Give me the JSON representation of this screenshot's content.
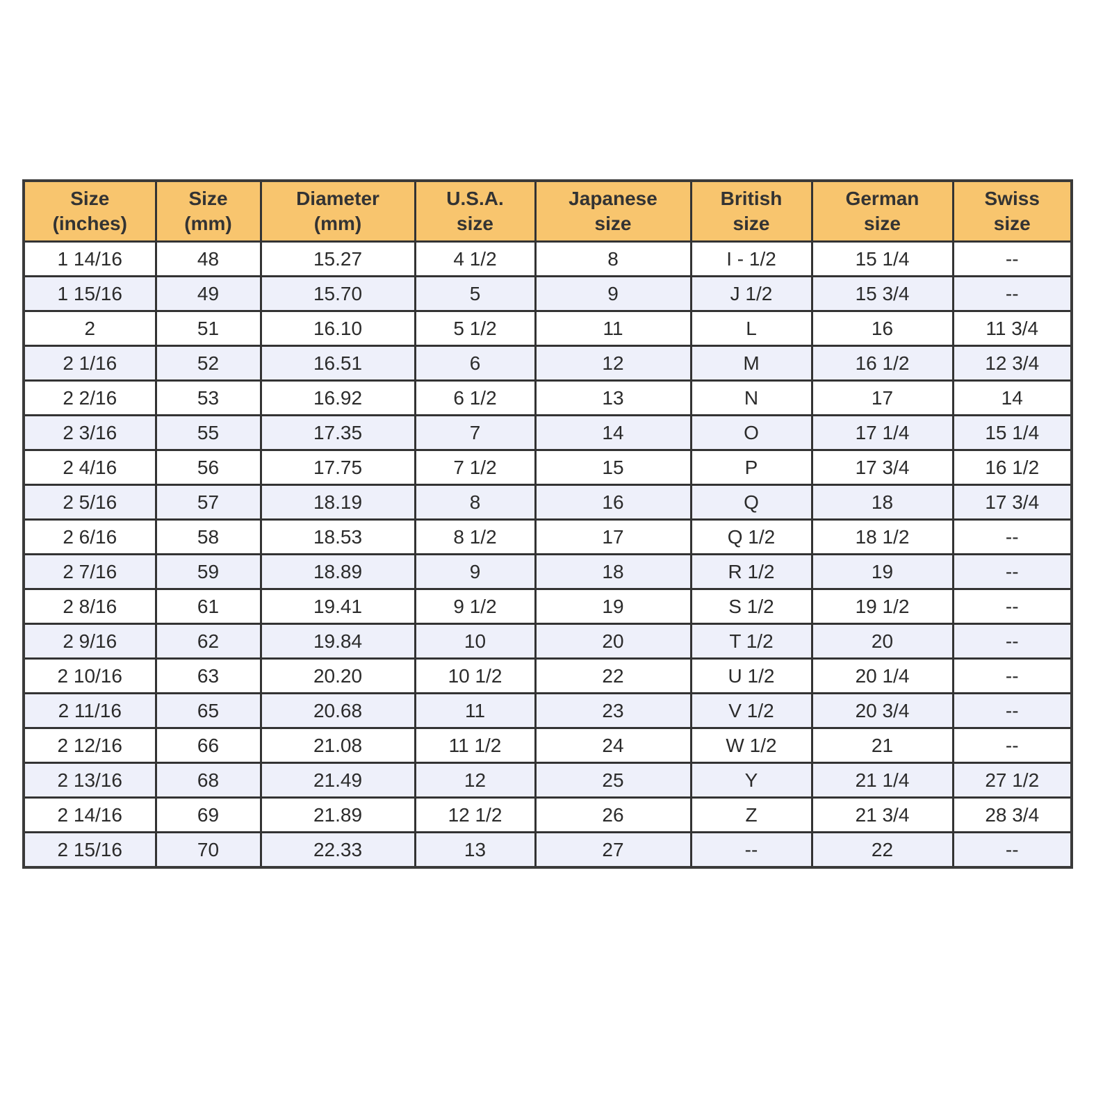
{
  "colors": {
    "header_bg": "#F8C56E",
    "alt_row_bg": "#EEF0FA",
    "border": "#333333"
  },
  "table": {
    "headers": [
      [
        "Size",
        "(inches)"
      ],
      [
        "Size",
        "(mm)"
      ],
      [
        "Diameter",
        "(mm)"
      ],
      [
        "U.S.A.",
        "size"
      ],
      [
        "Japanese",
        "size"
      ],
      [
        "British",
        "size"
      ],
      [
        "German",
        "size"
      ],
      [
        "Swiss",
        "size"
      ]
    ],
    "rows": [
      [
        "1 14/16",
        "48",
        "15.27",
        "4 1/2",
        "8",
        "I - 1/2",
        "15 1/4",
        "--"
      ],
      [
        "1 15/16",
        "49",
        "15.70",
        "5",
        "9",
        "J 1/2",
        "15 3/4",
        "--"
      ],
      [
        "2",
        "51",
        "16.10",
        "5 1/2",
        "11",
        "L",
        "16",
        "11 3/4"
      ],
      [
        "2 1/16",
        "52",
        "16.51",
        "6",
        "12",
        "M",
        "16 1/2",
        "12 3/4"
      ],
      [
        "2 2/16",
        "53",
        "16.92",
        "6 1/2",
        "13",
        "N",
        "17",
        "14"
      ],
      [
        "2 3/16",
        "55",
        "17.35",
        "7",
        "14",
        "O",
        "17 1/4",
        "15 1/4"
      ],
      [
        "2 4/16",
        "56",
        "17.75",
        "7 1/2",
        "15",
        "P",
        "17 3/4",
        "16 1/2"
      ],
      [
        "2 5/16",
        "57",
        "18.19",
        "8",
        "16",
        "Q",
        "18",
        "17 3/4"
      ],
      [
        "2 6/16",
        "58",
        "18.53",
        "8 1/2",
        "17",
        "Q 1/2",
        "18 1/2",
        "--"
      ],
      [
        "2 7/16",
        "59",
        "18.89",
        "9",
        "18",
        "R 1/2",
        "19",
        "--"
      ],
      [
        "2 8/16",
        "61",
        "19.41",
        "9 1/2",
        "19",
        "S 1/2",
        "19 1/2",
        "--"
      ],
      [
        "2 9/16",
        "62",
        "19.84",
        "10",
        "20",
        "T 1/2",
        "20",
        "--"
      ],
      [
        "2 10/16",
        "63",
        "20.20",
        "10 1/2",
        "22",
        "U 1/2",
        "20 1/4",
        "--"
      ],
      [
        "2 11/16",
        "65",
        "20.68",
        "11",
        "23",
        "V 1/2",
        "20 3/4",
        "--"
      ],
      [
        "2 12/16",
        "66",
        "21.08",
        "11 1/2",
        "24",
        "W 1/2",
        "21",
        "--"
      ],
      [
        "2 13/16",
        "68",
        "21.49",
        "12",
        "25",
        "Y",
        "21 1/4",
        "27 1/2"
      ],
      [
        "2 14/16",
        "69",
        "21.89",
        "12 1/2",
        "26",
        "Z",
        "21 3/4",
        "28 3/4"
      ],
      [
        "2 15/16",
        "70",
        "22.33",
        "13",
        "27",
        "--",
        "22",
        "--"
      ]
    ]
  }
}
